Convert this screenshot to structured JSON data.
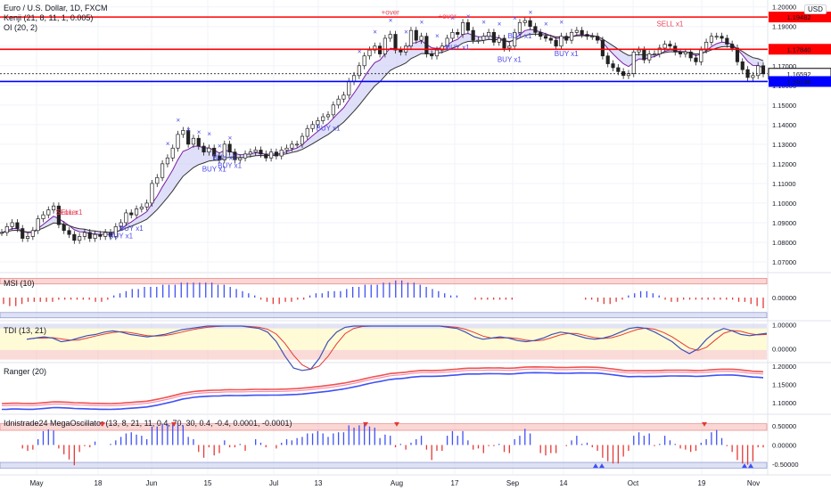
{
  "header": {
    "symbol_line": "Euro / U.S. Dollar, 1D, FXCM",
    "indicator_1": "Kenji (21, 8, 11, 1, 0.005)",
    "indicator_2": "OI (20, 2)",
    "currency": "USD"
  },
  "chart_data": [
    {
      "type": "candlestick",
      "title": "Euro / U.S. Dollar, 1D, FXCM",
      "y_ticks": [
        "1.20000",
        "1.19000",
        "1.18000",
        "1.17000",
        "1.16000",
        "1.15000",
        "1.14000",
        "1.13000",
        "1.12000",
        "1.11000",
        "1.10000",
        "1.09000",
        "1.08000",
        "1.07000"
      ],
      "ylim": [
        1.065,
        1.2035
      ],
      "x_ticks": [
        "May",
        "18",
        "Jun",
        "15",
        "Jul",
        "13",
        "Aug",
        "17",
        "Sep",
        "14",
        "Oct",
        "19",
        "Nov"
      ],
      "close": [
        1.085,
        1.088,
        1.09,
        1.087,
        1.082,
        1.083,
        1.086,
        1.092,
        1.094,
        1.0965,
        1.0985,
        1.089,
        1.086,
        1.084,
        1.081,
        1.083,
        1.085,
        1.082,
        1.084,
        1.083,
        1.085,
        1.083,
        1.088,
        1.09,
        1.095,
        1.094,
        1.097,
        1.098,
        1.1,
        1.11,
        1.113,
        1.12,
        1.123,
        1.128,
        1.135,
        1.137,
        1.13,
        1.133,
        1.129,
        1.126,
        1.128,
        1.124,
        1.122,
        1.13,
        1.126,
        1.122,
        1.123,
        1.125,
        1.126,
        1.127,
        1.125,
        1.123,
        1.126,
        1.124,
        1.127,
        1.128,
        1.13,
        1.13,
        1.134,
        1.138,
        1.14,
        1.142,
        1.144,
        1.145,
        1.15,
        1.153,
        1.155,
        1.162,
        1.165,
        1.17,
        1.175,
        1.178,
        1.18,
        1.176,
        1.184,
        1.186,
        1.178,
        1.177,
        1.18,
        1.188,
        1.183,
        1.185,
        1.176,
        1.175,
        1.178,
        1.18,
        1.184,
        1.187,
        1.186,
        1.192,
        1.188,
        1.183,
        1.183,
        1.185,
        1.187,
        1.182,
        1.184,
        1.179,
        1.18,
        1.187,
        1.192,
        1.193,
        1.19,
        1.187,
        1.185,
        1.184,
        1.183,
        1.18,
        1.185,
        1.183,
        1.187,
        1.188,
        1.186,
        1.185,
        1.185,
        1.183,
        1.175,
        1.171,
        1.169,
        1.167,
        1.165,
        1.166,
        1.177,
        1.178,
        1.173,
        1.176,
        1.176,
        1.179,
        1.181,
        1.18,
        1.177,
        1.176,
        1.177,
        1.174,
        1.172,
        1.178,
        1.182,
        1.185,
        1.185,
        1.184,
        1.181,
        1.179,
        1.172,
        1.168,
        1.164,
        1.165,
        1.17,
        1.1659
      ],
      "price_labels": [
        {
          "value": 1.19482,
          "label": "1.19482",
          "color": "#ff0000"
        },
        {
          "value": 1.1784,
          "label": "1.17840",
          "color": "#ff0000"
        },
        {
          "value": 1.16592,
          "label": "1.16592",
          "color": "#000000"
        },
        {
          "value": 1.16196,
          "label": "1.16196",
          "color": "#0000ff"
        }
      ],
      "signals": [
        {
          "index": 13,
          "text": "SELL x1",
          "side": "sell"
        },
        {
          "index": 13,
          "text": "+over",
          "side": "sell"
        },
        {
          "index": 23,
          "text": "BUY x1",
          "side": "buy"
        },
        {
          "index": 25,
          "text": "BUY x1",
          "side": "buy"
        },
        {
          "index": 41,
          "text": "BUY x1",
          "side": "buy"
        },
        {
          "index": 43,
          "text": "BUY x1",
          "side": "buy"
        },
        {
          "index": 44,
          "text": "BUY x1",
          "side": "buy"
        },
        {
          "index": 63,
          "text": "BUY x1",
          "side": "buy"
        },
        {
          "index": 75,
          "text": "+over",
          "side": "sell"
        },
        {
          "index": 86,
          "text": "+over",
          "side": "sell"
        },
        {
          "index": 88,
          "text": "BUY x1",
          "side": "buy"
        },
        {
          "index": 98,
          "text": "BUY x1",
          "side": "buy"
        },
        {
          "index": 100,
          "text": "BUY x1",
          "side": "buy"
        },
        {
          "index": 109,
          "text": "BUY x1",
          "side": "buy"
        },
        {
          "index": 129,
          "text": "SELL x1",
          "side": "sell"
        },
        {
          "index": 149,
          "text": "SELL x1",
          "side": "sell"
        }
      ]
    },
    {
      "type": "bar",
      "title": "MSI (10)",
      "y_ticks": [
        "0.00000"
      ],
      "values": [
        -0.3,
        -0.4,
        -0.4,
        -0.3,
        -0.2,
        -0.2,
        -0.2,
        -0.2,
        -0.2,
        -0.1,
        -0.1,
        -0.1,
        -0.1,
        -0.1,
        -0.1,
        -0.2,
        -0.2,
        -0.1,
        0.1,
        0.2,
        0.3,
        0.4,
        0.4,
        0.5,
        0.5,
        0.5,
        0.6,
        0.6,
        0.6,
        0.7,
        0.7,
        0.7,
        0.7,
        0.7,
        0.7,
        0.6,
        0.6,
        0.5,
        0.4,
        0.3,
        0.2,
        0.1,
        -0.1,
        -0.2,
        -0.3,
        -0.3,
        -0.2,
        -0.2,
        -0.1,
        -0.1,
        0.1,
        0.2,
        0.2,
        0.3,
        0.3,
        0.3,
        0.4,
        0.5,
        0.5,
        0.6,
        0.6,
        0.6,
        0.7,
        0.7,
        0.8,
        0.8,
        0.7,
        0.7,
        0.6,
        0.5,
        0.4,
        0.3,
        0.2,
        0.1,
        0.1,
        0.0,
        0.0,
        -0.1,
        -0.1,
        -0.1,
        -0.1,
        -0.1,
        -0.1,
        -0.1,
        0.0,
        0.0,
        0.0,
        0.0,
        0.0,
        0.0,
        0.0,
        0.0,
        0.0,
        0.0,
        0.0,
        -0.1,
        -0.1,
        -0.2,
        -0.3,
        -0.3,
        -0.2,
        -0.1,
        0.1,
        0.2,
        0.3,
        0.3,
        0.2,
        0.1,
        -0.1,
        -0.2,
        -0.2,
        -0.1,
        -0.1,
        -0.1,
        -0.1,
        -0.1,
        -0.1,
        -0.1,
        -0.1,
        -0.1,
        -0.2,
        -0.2,
        -0.3,
        -0.4,
        -0.5
      ],
      "bands": [
        0.8,
        -0.8
      ]
    },
    {
      "type": "line",
      "title": "TDI (13, 21)",
      "y_ticks": [
        "1.00000",
        "0.00000"
      ],
      "values": [
        0.4,
        0.45,
        0.5,
        0.45,
        0.3,
        0.35,
        0.45,
        0.55,
        0.6,
        0.7,
        0.75,
        0.7,
        0.6,
        0.55,
        0.5,
        0.55,
        0.6,
        0.7,
        0.8,
        0.85,
        0.9,
        0.95,
        0.95,
        0.95,
        0.95,
        0.95,
        0.9,
        0.85,
        0.7,
        0.3,
        -0.3,
        -0.8,
        -0.9,
        -0.85,
        -0.4,
        0.3,
        0.7,
        0.9,
        0.95,
        0.95,
        0.95,
        0.95,
        0.95,
        0.95,
        0.95,
        0.95,
        0.95,
        0.95,
        0.95,
        0.9,
        0.85,
        0.7,
        0.5,
        0.4,
        0.45,
        0.5,
        0.45,
        0.35,
        0.3,
        0.35,
        0.45,
        0.6,
        0.7,
        0.65,
        0.55,
        0.45,
        0.4,
        0.45,
        0.55,
        0.7,
        0.85,
        0.9,
        0.85,
        0.7,
        0.5,
        0.3,
        0.0,
        -0.2,
        0.0,
        0.4,
        0.7,
        0.85,
        0.75,
        0.6,
        0.55,
        0.6,
        0.65
      ],
      "bands": [
        0.85,
        -0.25
      ]
    },
    {
      "type": "line",
      "title": "Ranger (20)",
      "y_ticks": [
        "1.20000",
        "1.15000",
        "1.10000"
      ],
      "ylim": [
        1.07,
        1.205
      ]
    },
    {
      "type": "bar",
      "title": "Idnistrade24 MegaOscillator (13, 8, 21, 11, 0.4, 70, 30, 0.4, -0.4, 0.0001, -0.0001)",
      "y_ticks": [
        "0.50000",
        "0.00000",
        "-0.50000"
      ],
      "bands": [
        0.5,
        -0.5
      ],
      "ylim": [
        -0.75,
        0.75
      ]
    }
  ],
  "x_axis": [
    "May",
    "18",
    "Jun",
    "15",
    "Jul",
    "13",
    "Aug",
    "17",
    "Sep",
    "14",
    "Oct",
    "19",
    "Nov"
  ]
}
